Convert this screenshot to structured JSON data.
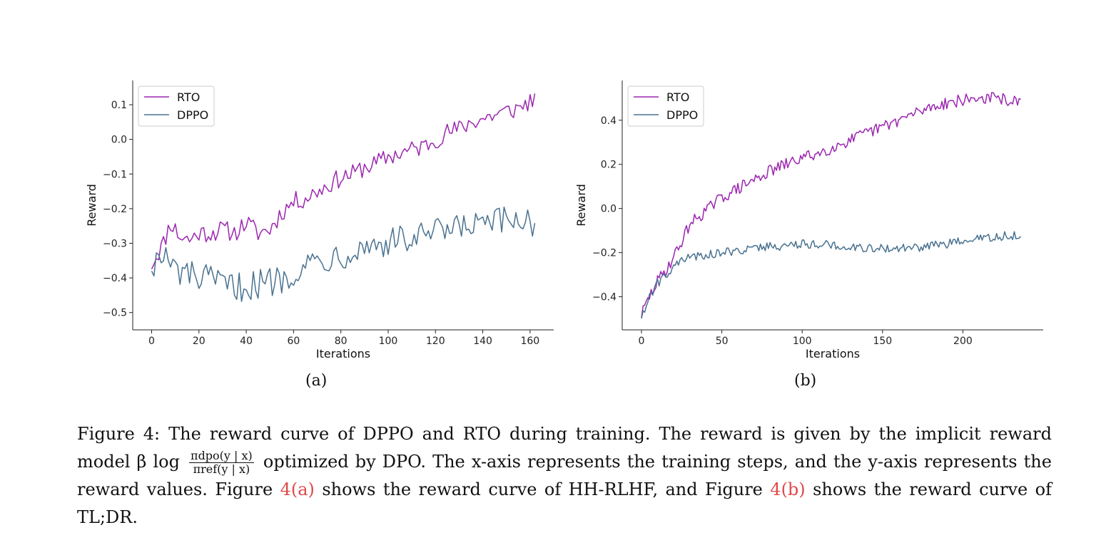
{
  "chart_data": [
    {
      "type": "line",
      "panel": "(a)",
      "xlabel": "Iterations",
      "ylabel": "Reward",
      "xlim": [
        -8,
        170
      ],
      "ylim": [
        -0.55,
        0.17
      ],
      "xticks": [
        0,
        20,
        40,
        60,
        80,
        100,
        120,
        140,
        160
      ],
      "yticks": [
        -0.5,
        -0.4,
        -0.3,
        -0.2,
        -0.1,
        0.0,
        0.1
      ],
      "ytick_labels": [
        "−0.5",
        "−0.4",
        "−0.3",
        "−0.2",
        "−0.1",
        "0.0",
        "0.1"
      ],
      "legend": "top-left",
      "grid": false,
      "series": [
        {
          "name": "RTO",
          "color": "#9b27af",
          "x": [
            0,
            5,
            8,
            12,
            16,
            20,
            25,
            30,
            35,
            40,
            45,
            50,
            55,
            60,
            65,
            70,
            75,
            80,
            85,
            90,
            95,
            100,
            105,
            110,
            115,
            120,
            125,
            130,
            135,
            140,
            145,
            150,
            155,
            160,
            162
          ],
          "y": [
            -0.36,
            -0.3,
            -0.24,
            -0.28,
            -0.29,
            -0.27,
            -0.27,
            -0.26,
            -0.27,
            -0.24,
            -0.27,
            -0.26,
            -0.21,
            -0.18,
            -0.17,
            -0.15,
            -0.13,
            -0.11,
            -0.1,
            -0.08,
            -0.07,
            -0.05,
            -0.04,
            -0.03,
            -0.02,
            -0.0,
            0.02,
            0.03,
            0.05,
            0.06,
            0.07,
            0.08,
            0.09,
            0.11,
            0.12
          ]
        },
        {
          "name": "DPPO",
          "color": "#4a7290",
          "x": [
            0,
            5,
            10,
            15,
            20,
            25,
            30,
            35,
            40,
            45,
            50,
            55,
            60,
            65,
            70,
            75,
            80,
            85,
            90,
            95,
            100,
            105,
            110,
            115,
            120,
            125,
            130,
            135,
            140,
            145,
            150,
            155,
            160,
            162
          ],
          "y": [
            -0.36,
            -0.34,
            -0.38,
            -0.39,
            -0.4,
            -0.41,
            -0.42,
            -0.43,
            -0.42,
            -0.42,
            -0.41,
            -0.4,
            -0.38,
            -0.36,
            -0.35,
            -0.34,
            -0.33,
            -0.32,
            -0.31,
            -0.3,
            -0.3,
            -0.29,
            -0.29,
            -0.28,
            -0.27,
            -0.27,
            -0.26,
            -0.25,
            -0.25,
            -0.24,
            -0.24,
            -0.23,
            -0.23,
            -0.25
          ]
        }
      ]
    },
    {
      "type": "line",
      "panel": "(b)",
      "xlabel": "Iterations",
      "ylabel": "Reward",
      "xlim": [
        -12,
        250
      ],
      "ylim": [
        -0.55,
        0.58
      ],
      "xticks": [
        0,
        50,
        100,
        150,
        200
      ],
      "yticks": [
        -0.4,
        -0.2,
        0.0,
        0.2,
        0.4
      ],
      "ytick_labels": [
        "−0.4",
        "−0.2",
        "0.0",
        "0.2",
        "0.4"
      ],
      "legend": "top-left",
      "grid": false,
      "series": [
        {
          "name": "RTO",
          "color": "#9b27af",
          "x": [
            0,
            5,
            10,
            15,
            20,
            25,
            30,
            40,
            50,
            60,
            70,
            80,
            90,
            100,
            110,
            120,
            130,
            140,
            150,
            160,
            170,
            180,
            190,
            200,
            210,
            220,
            230,
            236
          ],
          "y": [
            -0.48,
            -0.4,
            -0.33,
            -0.28,
            -0.22,
            -0.15,
            -0.07,
            -0.01,
            0.05,
            0.09,
            0.13,
            0.17,
            0.2,
            0.23,
            0.25,
            0.28,
            0.31,
            0.34,
            0.37,
            0.4,
            0.43,
            0.46,
            0.48,
            0.49,
            0.5,
            0.5,
            0.49,
            0.47
          ]
        },
        {
          "name": "DPPO",
          "color": "#4a7290",
          "x": [
            0,
            5,
            10,
            15,
            20,
            25,
            30,
            40,
            50,
            60,
            70,
            80,
            90,
            100,
            110,
            120,
            130,
            140,
            150,
            160,
            170,
            180,
            190,
            200,
            210,
            220,
            230,
            236
          ],
          "y": [
            -0.49,
            -0.4,
            -0.34,
            -0.3,
            -0.26,
            -0.24,
            -0.22,
            -0.21,
            -0.2,
            -0.19,
            -0.18,
            -0.17,
            -0.17,
            -0.16,
            -0.16,
            -0.17,
            -0.17,
            -0.18,
            -0.18,
            -0.18,
            -0.18,
            -0.17,
            -0.16,
            -0.15,
            -0.14,
            -0.13,
            -0.12,
            -0.13
          ]
        }
      ]
    }
  ],
  "subcaptions": {
    "a": "(a)",
    "b": "(b)"
  },
  "caption": {
    "part1": "Figure 4: The reward curve of DPPO and RTO during training. The reward is given by the implicit reward model β log",
    "frac_num": "πdpo(y | x)",
    "frac_den": "πref(y | x)",
    "part2": "optimized by DPO. The x-axis represents the training steps, and the y-axis represents the reward values. Figure",
    "ref_a": "4(a)",
    "part3": "shows the reward curve of HH-RLHF, and Figure",
    "ref_b": "4(b)",
    "part4": "shows the reward curve of TL;DR."
  }
}
